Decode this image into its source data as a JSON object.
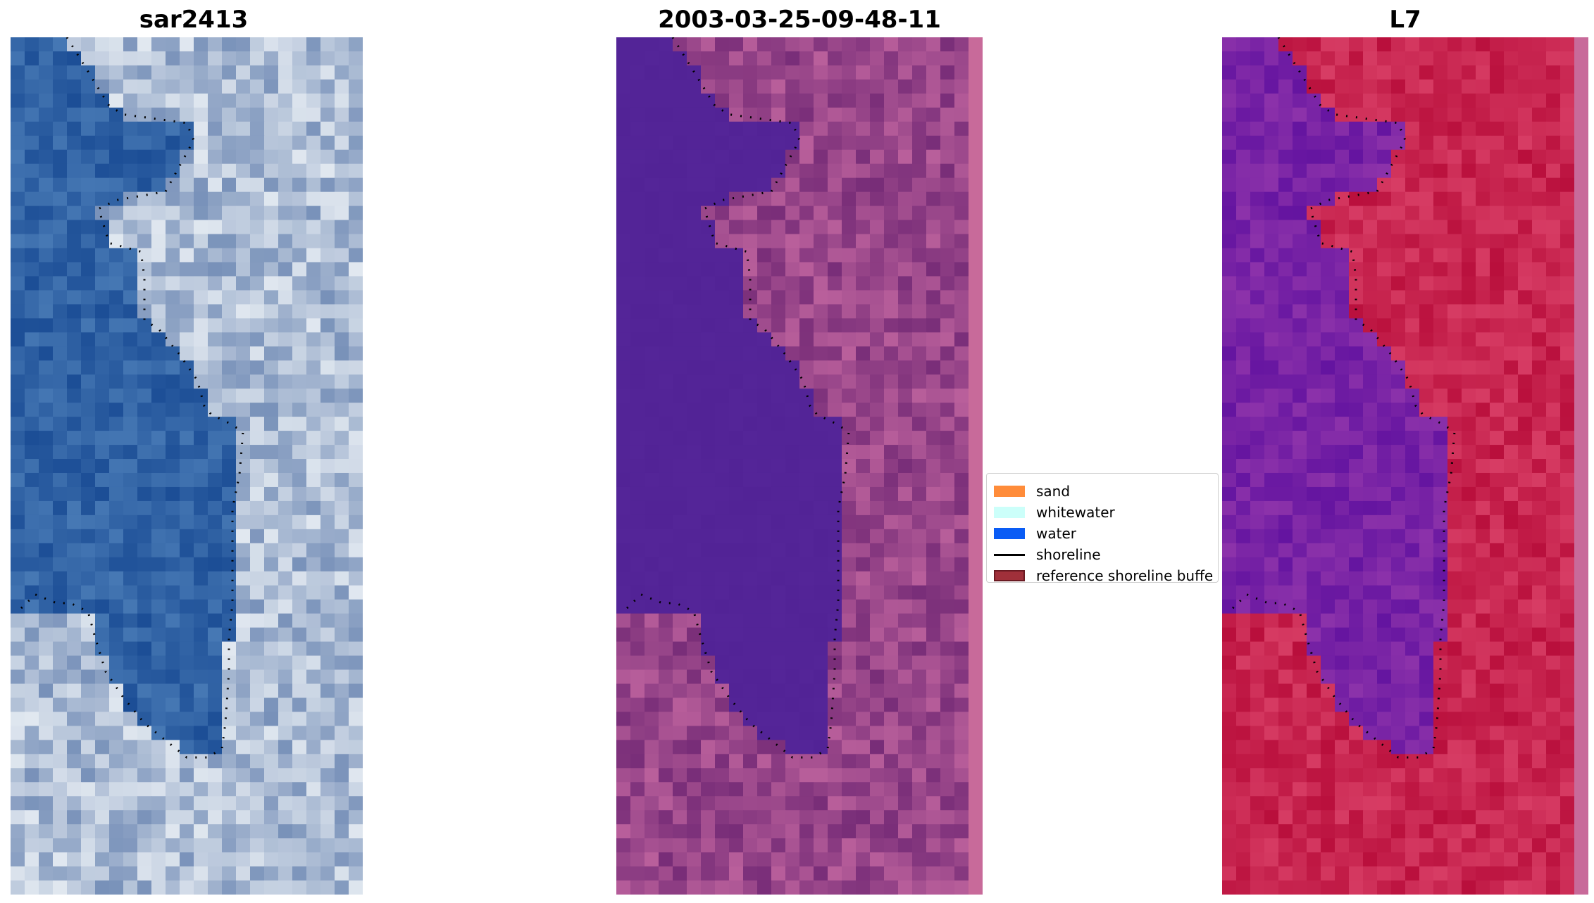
{
  "panels": [
    {
      "title": "sar2413",
      "kind": "rgb-image"
    },
    {
      "title": "2003-03-25-09-48-11",
      "kind": "classified-image"
    },
    {
      "title": "L7",
      "kind": "water-index-image"
    }
  ],
  "legend": {
    "items": [
      {
        "label": "sand",
        "color": "#ff8c3a",
        "type": "patch"
      },
      {
        "label": "whitewater",
        "color": "#ccfffa",
        "type": "patch"
      },
      {
        "label": "water",
        "color": "#0a5cf5",
        "type": "patch"
      },
      {
        "label": "shoreline",
        "color": "#000000",
        "type": "line"
      },
      {
        "label": "reference shoreline buffe",
        "color": "#a0303a",
        "type": "patch"
      }
    ]
  },
  "colors": {
    "water_rgb": "#275da0",
    "land_rgb": "#a9b9d4",
    "water_class": "#522396",
    "land_class": "#9a4a8a",
    "index_water": "#7a1aa0",
    "index_land": "#c21745",
    "buffer_strip": "#c86a9a"
  }
}
